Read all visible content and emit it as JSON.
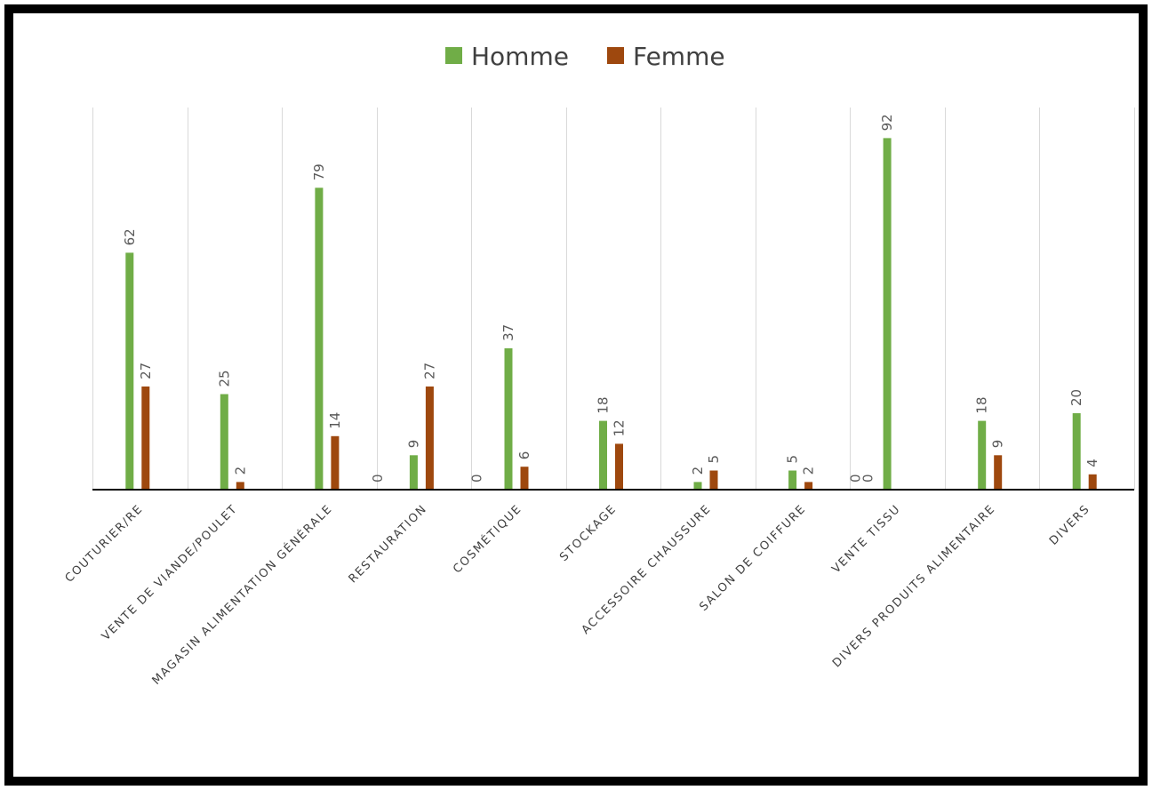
{
  "chart_data": {
    "type": "bar",
    "categories": [
      "COUTURIER/RE",
      "VENTE DE VIANDE/POULET",
      "MAGASIN ALIMENTATION GÉNÉRALE",
      "RESTAURATION",
      "COSMÉTIQUE",
      "STOCKAGE",
      "ACCESSOIRE CHAUSSURE",
      "SALON DE COIFFURE",
      "VENTE TISSU",
      "DIVERS PRODUITS ALIMENTAIRE",
      "DIVERS"
    ],
    "series": [
      {
        "name": "Homme",
        "color": "#70AD47",
        "values": [
          62,
          25,
          79,
          null,
          null,
          18,
          2,
          5,
          null,
          18,
          20
        ],
        "labels": [
          "62",
          "25",
          "79",
          "0",
          "0",
          "18",
          "2",
          "5",
          "0",
          "18",
          "20"
        ]
      },
      {
        "name": "Femme",
        "color": "#9E480E",
        "values": [
          27,
          2,
          14,
          27,
          6,
          12,
          5,
          2,
          null,
          9,
          4
        ],
        "labels": [
          "27",
          "2",
          "14",
          "27",
          "6",
          "12",
          "5",
          "2",
          "0",
          "9",
          "4"
        ]
      },
      {
        "name": "",
        "color": "#70AD47",
        "values": [
          null,
          null,
          null,
          9,
          37,
          null,
          null,
          null,
          92,
          null,
          null
        ],
        "labels": [
          "",
          "",
          "",
          "9",
          "37",
          "",
          "",
          "",
          "92",
          "",
          ""
        ]
      }
    ],
    "legend": {
      "position": "top",
      "entries": [
        "Homme",
        "Femme"
      ]
    },
    "ylim": [
      0,
      100
    ],
    "grid": {
      "vertical_category_lines": true,
      "horizontal": false
    },
    "colors": {
      "axis": "#000000",
      "gridline": "#D9D9D9",
      "label_text": "#595959",
      "category_text": "#404040"
    },
    "title": "",
    "xlabel": "",
    "ylabel": ""
  }
}
